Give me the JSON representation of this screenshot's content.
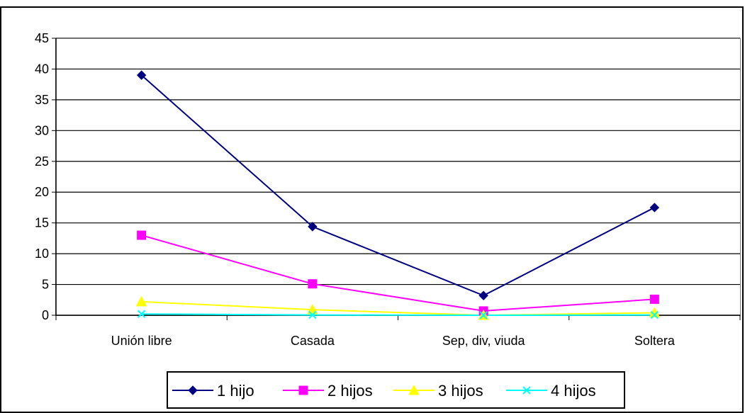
{
  "chart_data": {
    "type": "line",
    "title": "",
    "xlabel": "",
    "ylabel": "",
    "categories": [
      "Unión libre",
      "Casada",
      "Sep, div, viuda",
      "Soltera"
    ],
    "ylim": [
      0,
      45
    ],
    "yticks": [
      0,
      5,
      10,
      15,
      20,
      25,
      30,
      35,
      40,
      45
    ],
    "grid": true,
    "legend_position": "bottom",
    "series": [
      {
        "name": "1 hijo",
        "values": [
          39,
          14.4,
          3.2,
          17.5
        ],
        "color": "#000080",
        "marker": "diamond"
      },
      {
        "name": "2 hijos",
        "values": [
          13,
          5.1,
          0.7,
          2.6
        ],
        "color": "#FF00FF",
        "marker": "square"
      },
      {
        "name": "3 hijos",
        "values": [
          2.2,
          0.9,
          0,
          0.4
        ],
        "color": "#FFFF00",
        "marker": "triangle"
      },
      {
        "name": "4 hijos",
        "values": [
          0.2,
          0.05,
          0,
          0.05
        ],
        "color": "#00FFFF",
        "marker": "x"
      }
    ]
  }
}
